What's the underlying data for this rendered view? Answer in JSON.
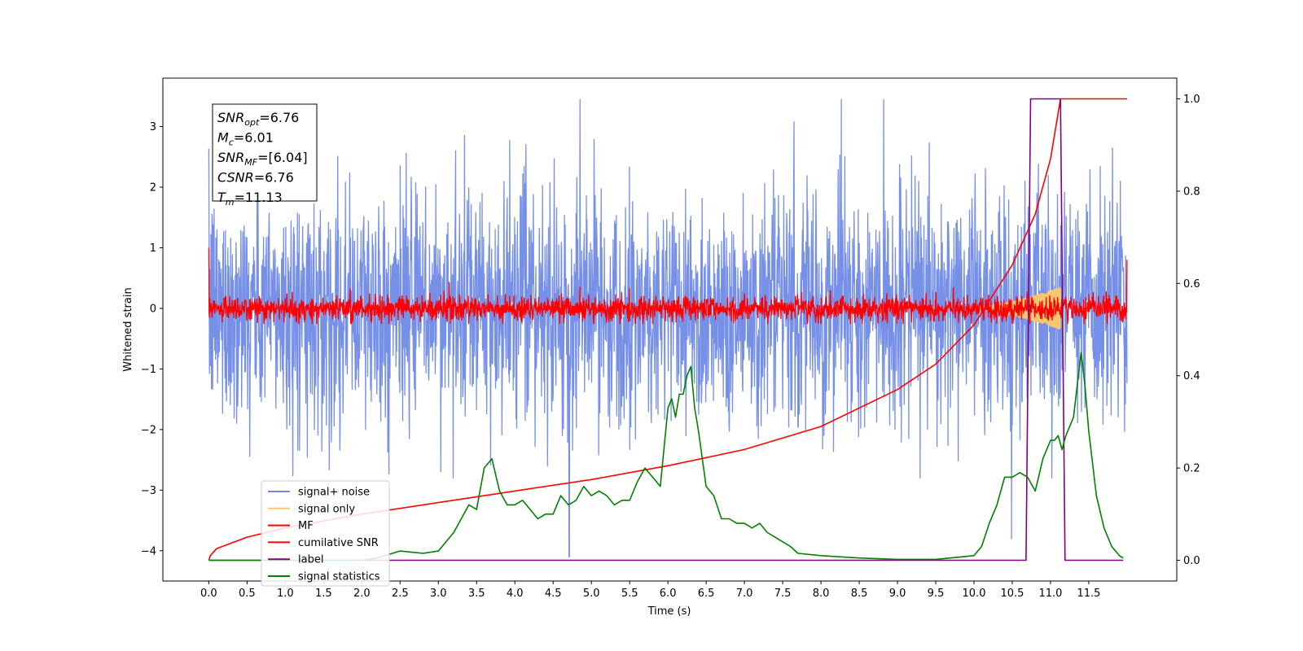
{
  "chart_data": {
    "type": "line",
    "title": "",
    "xlabel": "Time (s)",
    "ylabel": "Whitened strain",
    "xlim": [
      -0.6,
      12.65
    ],
    "ylim": [
      -4.5,
      3.8
    ],
    "y2lim": [
      -0.045,
      1.045
    ],
    "x_ticks": [
      "0.0",
      "0.5",
      "1.0",
      "1.5",
      "2.0",
      "2.5",
      "3.0",
      "3.5",
      "4.0",
      "4.5",
      "5.0",
      "5.5",
      "6.0",
      "6.5",
      "7.0",
      "7.5",
      "8.0",
      "8.5",
      "9.0",
      "9.5",
      "10.0",
      "10.5",
      "11.0",
      "11.5"
    ],
    "y_ticks": [
      "3",
      "2",
      "1",
      "0",
      "−1",
      "−2",
      "−3",
      "−4"
    ],
    "y2_ticks": [
      "1.0",
      "0.8",
      "0.6",
      "0.4",
      "0.2",
      "0.0"
    ],
    "legend_position": "lower-left",
    "info_box": {
      "position": "top-left",
      "lines": [
        {
          "sym": "SNR",
          "sub": "opt",
          "value": "=6.76"
        },
        {
          "sym": "M",
          "sub": "c",
          "value": "=6.01"
        },
        {
          "sym": "SNR",
          "sub": "MF",
          "value": "=[6.04]"
        },
        {
          "sym": "CSNR",
          "sub": "",
          "value": "=6.76"
        },
        {
          "sym": "T",
          "sub": "m",
          "value": "=11.13"
        }
      ]
    },
    "series": [
      {
        "name": "signal+ noise",
        "axis": "left",
        "color": "#6f8ae6",
        "kind": "noise",
        "t_range": [
          0.0,
          12.0
        ],
        "std": 0.95,
        "y_min": -2.8,
        "y_max": 3.45,
        "spike_points": [
          {
            "x": 4.71,
            "y": -4.1
          },
          {
            "x": 10.49,
            "y": -3.8
          }
        ]
      },
      {
        "name": "signal only",
        "axis": "left",
        "color": "#f5c86e",
        "kind": "chirp",
        "t_range": [
          9.9,
          11.13
        ],
        "peak_amplitude": 0.35
      },
      {
        "name": "MF",
        "axis": "left",
        "color": "#ff0000",
        "kind": "noise",
        "t_range": [
          0.0,
          12.0
        ],
        "std": 0.1,
        "y_min": -0.25,
        "y_max": 0.6,
        "start_value": 1.0,
        "end_value": 0.8
      },
      {
        "name": "cumilative SNR",
        "axis": "right",
        "color": "#ff0000",
        "x": [
          0.0,
          0.02,
          0.1,
          0.5,
          1.0,
          2.0,
          3.0,
          4.0,
          5.0,
          6.0,
          7.0,
          8.0,
          9.0,
          9.5,
          10.0,
          10.5,
          10.8,
          11.0,
          11.13,
          12.0
        ],
        "y": [
          0.0,
          0.01,
          0.025,
          0.05,
          0.07,
          0.1,
          0.125,
          0.15,
          0.175,
          0.205,
          0.24,
          0.29,
          0.37,
          0.425,
          0.51,
          0.64,
          0.75,
          0.87,
          1.0,
          1.0
        ]
      },
      {
        "name": "label",
        "axis": "right",
        "color": "#800080",
        "x": [
          0.0,
          10.68,
          10.74,
          11.13,
          11.19,
          11.95
        ],
        "y": [
          0.0,
          0.0,
          1.0,
          1.0,
          0.0,
          0.0
        ]
      },
      {
        "name": "signal statistics",
        "axis": "right",
        "color": "#008000",
        "x": [
          0.0,
          2.0,
          2.2,
          2.5,
          2.8,
          3.0,
          3.2,
          3.4,
          3.5,
          3.6,
          3.7,
          3.8,
          3.9,
          4.0,
          4.1,
          4.2,
          4.3,
          4.4,
          4.5,
          4.6,
          4.7,
          4.8,
          4.9,
          5.0,
          5.1,
          5.2,
          5.3,
          5.4,
          5.5,
          5.6,
          5.7,
          5.8,
          5.9,
          6.0,
          6.05,
          6.1,
          6.15,
          6.2,
          6.25,
          6.3,
          6.35,
          6.4,
          6.5,
          6.6,
          6.7,
          6.8,
          6.9,
          7.0,
          7.1,
          7.2,
          7.3,
          7.4,
          7.5,
          7.6,
          7.7,
          8.0,
          8.5,
          9.0,
          9.5,
          10.0,
          10.1,
          10.2,
          10.3,
          10.4,
          10.5,
          10.6,
          10.7,
          10.8,
          10.9,
          11.0,
          11.05,
          11.1,
          11.15,
          11.2,
          11.3,
          11.4,
          11.45,
          11.5,
          11.6,
          11.7,
          11.8,
          11.9,
          11.95
        ],
        "y": [
          0.0,
          0.0,
          0.005,
          0.02,
          0.015,
          0.02,
          0.06,
          0.12,
          0.11,
          0.2,
          0.22,
          0.15,
          0.12,
          0.12,
          0.13,
          0.11,
          0.09,
          0.1,
          0.1,
          0.14,
          0.12,
          0.13,
          0.16,
          0.14,
          0.15,
          0.14,
          0.12,
          0.13,
          0.13,
          0.17,
          0.2,
          0.18,
          0.16,
          0.33,
          0.35,
          0.31,
          0.36,
          0.36,
          0.4,
          0.42,
          0.33,
          0.28,
          0.16,
          0.14,
          0.09,
          0.09,
          0.08,
          0.08,
          0.07,
          0.08,
          0.06,
          0.05,
          0.04,
          0.03,
          0.015,
          0.01,
          0.005,
          0.002,
          0.002,
          0.01,
          0.03,
          0.08,
          0.12,
          0.18,
          0.18,
          0.19,
          0.18,
          0.15,
          0.22,
          0.26,
          0.26,
          0.27,
          0.24,
          0.27,
          0.31,
          0.45,
          0.38,
          0.28,
          0.14,
          0.07,
          0.03,
          0.01,
          0.005
        ]
      }
    ]
  }
}
